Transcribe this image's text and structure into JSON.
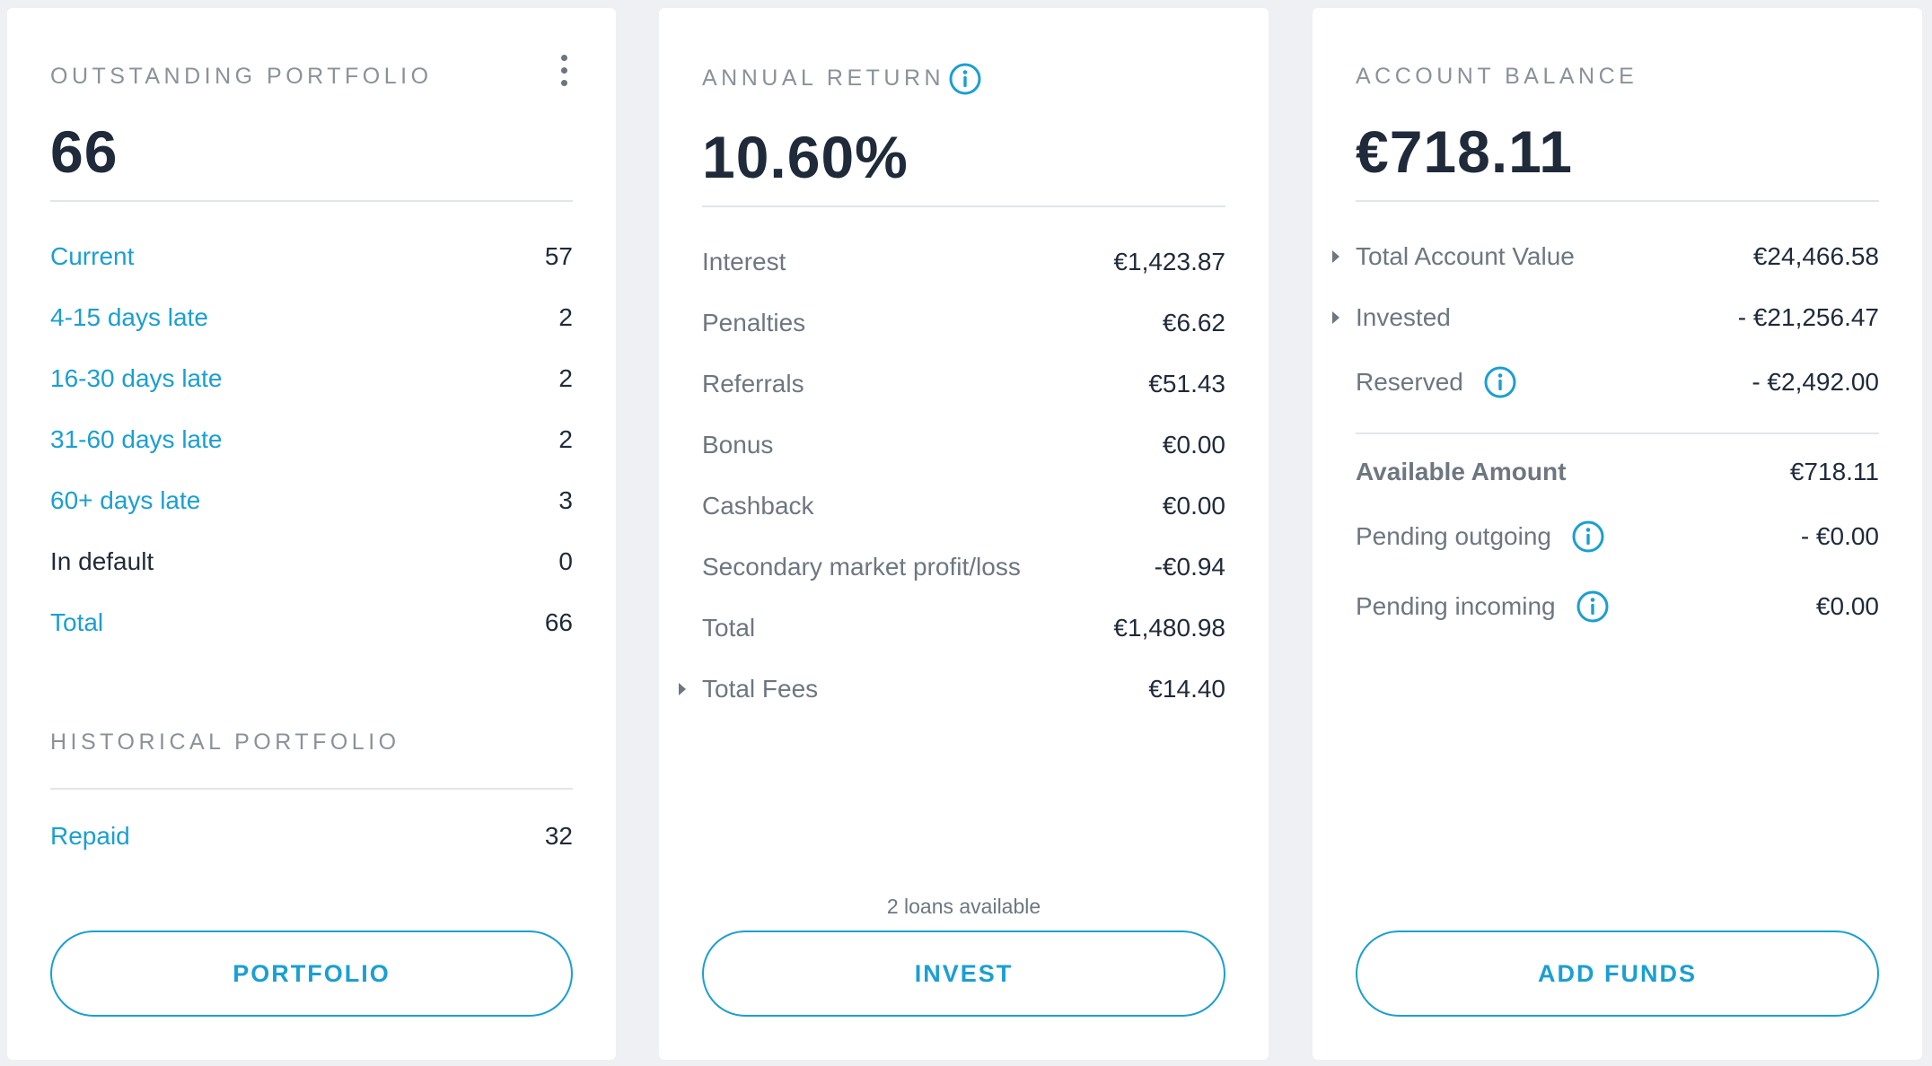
{
  "outstanding": {
    "title": "OUTSTANDING PORTFOLIO",
    "total": "66",
    "rows": [
      {
        "label": "Current",
        "value": "57"
      },
      {
        "label": "4-15 days late",
        "value": "2"
      },
      {
        "label": "16-30 days late",
        "value": "2"
      },
      {
        "label": "31-60 days late",
        "value": "2"
      },
      {
        "label": "60+ days late",
        "value": "3"
      },
      {
        "label": "In default",
        "value": "0"
      },
      {
        "label": "Total",
        "value": "66"
      }
    ],
    "historical_title": "HISTORICAL PORTFOLIO",
    "historical_rows": [
      {
        "label": "Repaid",
        "value": "32"
      }
    ],
    "button_label": "PORTFOLIO"
  },
  "annual_return": {
    "title": "ANNUAL RETURN",
    "value": "10.60%",
    "rows": [
      {
        "label": "Interest",
        "value": "€1,423.87"
      },
      {
        "label": "Penalties",
        "value": "€6.62"
      },
      {
        "label": "Referrals",
        "value": "€51.43"
      },
      {
        "label": "Bonus",
        "value": "€0.00"
      },
      {
        "label": "Cashback",
        "value": "€0.00"
      },
      {
        "label": "Secondary market profit/loss",
        "value": "-€0.94"
      },
      {
        "label": "Total",
        "value": "€1,480.98"
      },
      {
        "label": "Total Fees",
        "value": "€14.40"
      }
    ],
    "loans_available": "2 loans available",
    "button_label": "INVEST"
  },
  "account_balance": {
    "title": "ACCOUNT BALANCE",
    "value": "€718.11",
    "rows": [
      {
        "label": "Total Account Value",
        "value": "€24,466.58"
      },
      {
        "label": "Invested",
        "value": "- €21,256.47"
      },
      {
        "label": "Reserved",
        "value": "- €2,492.00"
      }
    ],
    "rows2": [
      {
        "label": "Available Amount",
        "value": "€718.11"
      },
      {
        "label": "Pending outgoing",
        "value": "- €0.00"
      },
      {
        "label": "Pending incoming",
        "value": "€0.00"
      }
    ],
    "button_label": "ADD FUNDS"
  },
  "colors": {
    "accent": "#1a9fd3",
    "text_dark": "#1f2a3a",
    "text_grey": "#6e7680",
    "background": "#eef0f3"
  },
  "icons": [
    "kebab-menu-icon",
    "info-icon",
    "caret-right-icon"
  ]
}
